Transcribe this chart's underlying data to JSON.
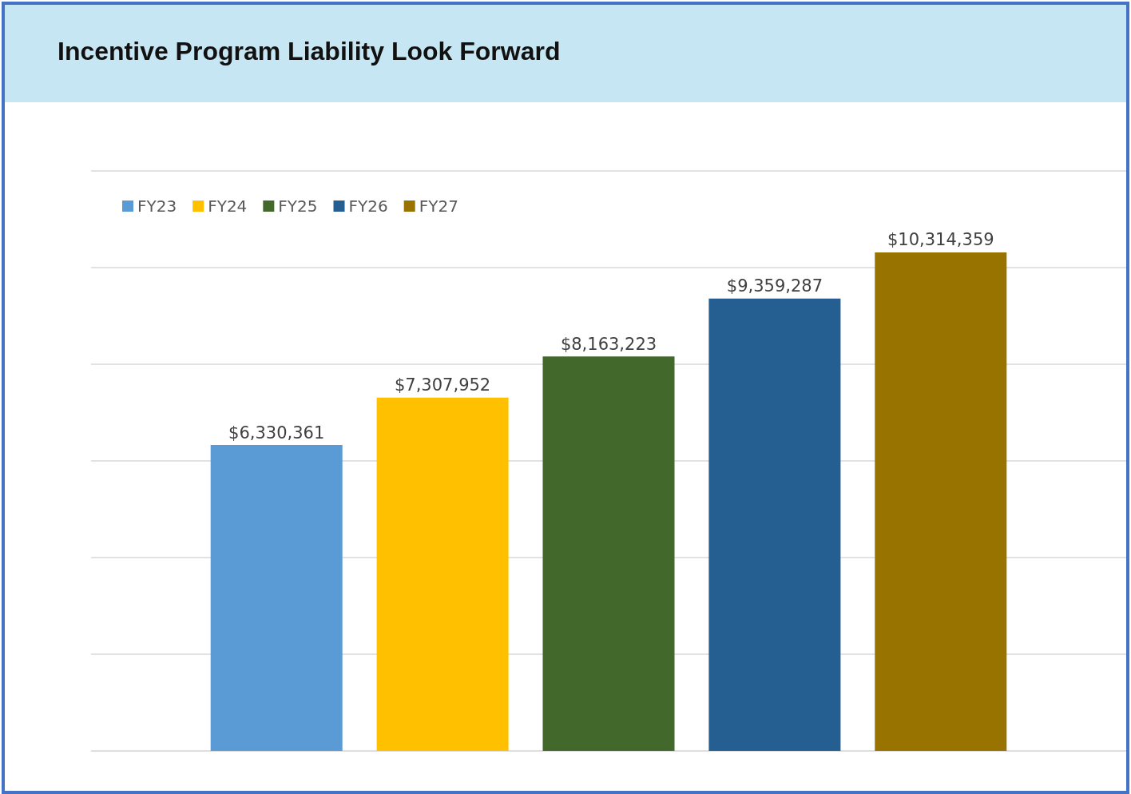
{
  "chart_data": {
    "type": "bar",
    "title": "Incentive Program Liability Look Forward",
    "categories": [
      null
    ],
    "series": [
      {
        "name": "FY23",
        "color": "#5b9bd5",
        "values": [
          6330361
        ],
        "value_labels": [
          "$6,330,361"
        ]
      },
      {
        "name": "FY24",
        "color": "#ffc000",
        "values": [
          7307952
        ],
        "value_labels": [
          "$7,307,952"
        ]
      },
      {
        "name": "FY25",
        "color": "#43682b",
        "values": [
          8163223
        ],
        "value_labels": [
          "$8,163,223"
        ]
      },
      {
        "name": "FY26",
        "color": "#255e91",
        "values": [
          9359287
        ],
        "value_labels": [
          "$9,359,287"
        ]
      },
      {
        "name": "FY27",
        "color": "#997300",
        "values": [
          10314359
        ],
        "value_labels": [
          "$10,314,359"
        ]
      }
    ],
    "ylim": [
      0,
      12000000
    ],
    "yticks": [
      {
        "value": 0,
        "label": null
      },
      {
        "value": 2000000,
        "label": null
      },
      {
        "value": 4000000,
        "label": null
      },
      {
        "value": 6000000,
        "label": null
      },
      {
        "value": 8000000,
        "label": null
      },
      {
        "value": 10000000,
        "label": null
      },
      {
        "value": 12000000,
        "label": null
      }
    ],
    "grid": "y",
    "legend": "top left"
  }
}
